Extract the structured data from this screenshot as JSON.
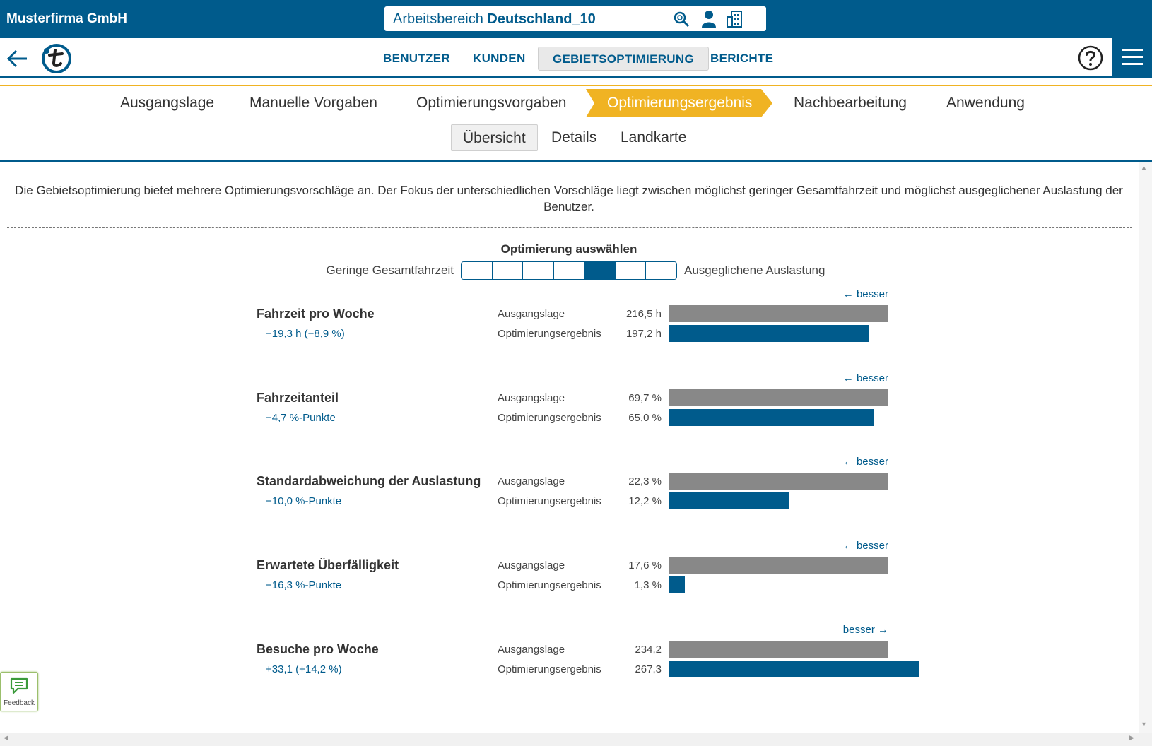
{
  "header": {
    "company": "Musterfirma GmbH",
    "workspace_prefix": "Arbeitsbereich",
    "workspace_name": "Deutschland_10"
  },
  "nav": {
    "items": [
      "BENUTZER",
      "KUNDEN",
      "GEBIETSOPTIMIERUNG",
      "BERICHTE"
    ],
    "active": "GEBIETSOPTIMIERUNG"
  },
  "steps": {
    "items": [
      "Ausgangslage",
      "Manuelle Vorgaben",
      "Optimierungsvorgaben",
      "Optimierungsergebnis",
      "Nachbearbeitung",
      "Anwendung"
    ],
    "active": "Optimierungsergebnis"
  },
  "subtabs": {
    "items": [
      "Übersicht",
      "Details",
      "Landkarte"
    ],
    "active": "Übersicht"
  },
  "intro_text": "Die Gebietsoptimierung bietet mehrere Optimierungsvorschläge an. Der Fokus der unterschiedlichen Vorschläge liegt zwischen möglichst geringer Gesamtfahrzeit und möglichst ausgeglichener Auslastung der Benutzer.",
  "optimization": {
    "title": "Optimierung auswählen",
    "left_label": "Geringe Gesamtfahrzeit",
    "right_label": "Ausgeglichene Auslastung",
    "segments": 7,
    "selected_index": 4
  },
  "row_labels": {
    "baseline": "Ausgangslage",
    "result": "Optimierungsergebnis"
  },
  "metrics": [
    {
      "title": "Fahrzeit pro Woche",
      "delta": "−19,3 h (−8,9 %)",
      "better": "← besser",
      "better_dir": "left",
      "baseline_text": "216,5 h",
      "result_text": "197,2 h",
      "baseline": 216.5,
      "result": 197.2
    },
    {
      "title": "Fahrzeitanteil",
      "delta": "−4,7 %-Punkte",
      "better": "← besser",
      "better_dir": "left",
      "baseline_text": "69,7 %",
      "result_text": "65,0 %",
      "baseline": 69.7,
      "result": 65.0
    },
    {
      "title": "Standardabweichung der Auslastung",
      "delta": "−10,0 %-Punkte",
      "better": "← besser",
      "better_dir": "left",
      "baseline_text": "22,3 %",
      "result_text": "12,2 %",
      "baseline": 22.3,
      "result": 12.2
    },
    {
      "title": "Erwartete Überfälligkeit",
      "delta": "−16,3 %-Punkte",
      "better": "← besser",
      "better_dir": "left",
      "baseline_text": "17,6 %",
      "result_text": "1,3 %",
      "baseline": 17.6,
      "result": 1.3
    },
    {
      "title": "Besuche pro Woche",
      "delta": "+33,1 (+14,2 %)",
      "better": "besser →",
      "better_dir": "right",
      "baseline_text": "234,2",
      "result_text": "267,3",
      "baseline": 234.2,
      "result": 267.3
    }
  ],
  "feedback": {
    "label": "Feedback"
  },
  "colors": {
    "primary": "#005b8c",
    "accent": "#f0b323",
    "baseline_bar": "#888888"
  },
  "icons": [
    "search-icon",
    "user-icon",
    "building-icon",
    "back-arrow-icon",
    "logo-icon",
    "help-icon",
    "menu-icon",
    "feedback-icon"
  ]
}
